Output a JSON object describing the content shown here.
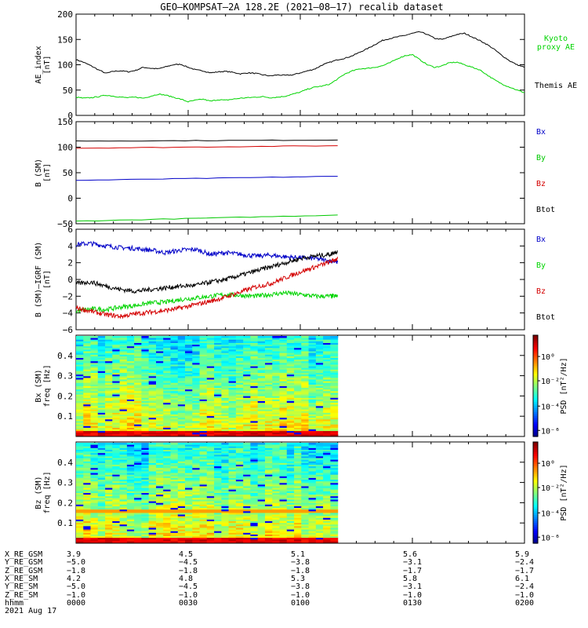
{
  "title": "GEO–KOMPSAT–2A 128.2E (2021–08–17) recalib dataset",
  "chart_data": [
    {
      "type": "line",
      "ylabel": "AE_index [nT]",
      "ylabel_lines": [
        "AE_index",
        "[nT]"
      ],
      "ylim": [
        0,
        200
      ],
      "yticks": [
        "0",
        "50",
        "100",
        "150",
        "200"
      ],
      "grid": false,
      "series": [
        {
          "name": "Themis AE",
          "color": "#000000",
          "x": [
            0,
            2,
            4,
            6,
            8,
            10,
            12,
            14,
            16,
            18,
            20,
            22,
            24,
            26,
            28,
            30,
            32,
            34,
            36,
            38,
            40,
            42,
            44,
            46,
            48,
            50,
            52,
            54,
            56,
            58,
            60,
            62,
            64,
            66,
            68,
            70,
            72,
            74,
            76,
            78,
            80,
            82,
            84,
            86,
            88,
            90,
            92,
            94,
            96,
            98,
            100,
            102,
            104,
            106,
            108,
            110,
            112,
            114,
            116,
            118,
            120
          ],
          "values": [
            110,
            105,
            98,
            90,
            83,
            87,
            88,
            86,
            89,
            95,
            93,
            92,
            96,
            100,
            101,
            95,
            90,
            88,
            84,
            86,
            87,
            85,
            82,
            84,
            83,
            80,
            78,
            80,
            79,
            80,
            84,
            88,
            92,
            100,
            105,
            110,
            113,
            118,
            125,
            132,
            140,
            148,
            152,
            155,
            158,
            162,
            165,
            160,
            152,
            150,
            155,
            160,
            162,
            155,
            148,
            140,
            130,
            118,
            108,
            100,
            95
          ]
        },
        {
          "name": "Kyoto proxy AE",
          "color": "#00d400",
          "x": [
            0,
            2,
            4,
            6,
            8,
            10,
            12,
            14,
            16,
            18,
            20,
            22,
            24,
            26,
            28,
            30,
            32,
            34,
            36,
            38,
            40,
            42,
            44,
            46,
            48,
            50,
            52,
            54,
            56,
            58,
            60,
            62,
            64,
            66,
            68,
            70,
            72,
            74,
            76,
            78,
            80,
            82,
            84,
            86,
            88,
            90,
            92,
            94,
            96,
            98,
            100,
            102,
            104,
            106,
            108,
            110,
            112,
            114,
            116,
            118,
            120
          ],
          "values": [
            36,
            34,
            35,
            37,
            40,
            38,
            36,
            35,
            36,
            34,
            38,
            42,
            40,
            36,
            32,
            27,
            30,
            32,
            28,
            31,
            30,
            32,
            34,
            35,
            36,
            37,
            35,
            36,
            38,
            42,
            46,
            52,
            56,
            58,
            62,
            72,
            82,
            88,
            92,
            93,
            95,
            98,
            104,
            112,
            118,
            120,
            110,
            100,
            95,
            98,
            104,
            105,
            100,
            95,
            90,
            80,
            70,
            62,
            56,
            50,
            45
          ]
        }
      ],
      "legend": [
        {
          "lines": [
            "Kyoto",
            "proxy AE"
          ],
          "color": "#00d400"
        },
        {
          "lines": [
            "Themis AE"
          ],
          "color": "#000000"
        }
      ]
    },
    {
      "type": "line",
      "ylabel": "B (SM) [nT]",
      "ylabel_lines": [
        "B (SM)",
        "[nT]"
      ],
      "ylim": [
        -50,
        150
      ],
      "yticks": [
        "−50",
        "0",
        "50",
        "100",
        "150"
      ],
      "grid": false,
      "series": [
        {
          "name": "Bx",
          "color": "#0000c8",
          "x": [
            0,
            70
          ],
          "values": [
            35,
            43
          ]
        },
        {
          "name": "By",
          "color": "#00c800",
          "x": [
            0,
            70
          ],
          "values": [
            -45,
            -33
          ]
        },
        {
          "name": "Bz",
          "color": "#d40000",
          "x": [
            0,
            70
          ],
          "values": [
            98,
            103
          ]
        },
        {
          "name": "Btot",
          "color": "#000000",
          "x": [
            0,
            70
          ],
          "values": [
            112,
            114
          ]
        }
      ],
      "legend": [
        {
          "lines": [
            "Bx"
          ],
          "color": "#0000c8"
        },
        {
          "lines": [
            "By"
          ],
          "color": "#00c800"
        },
        {
          "lines": [
            "Bz"
          ],
          "color": "#d40000"
        },
        {
          "lines": [
            "Btot"
          ],
          "color": "#000000"
        }
      ]
    },
    {
      "type": "line",
      "ylabel": "B (SM)–IGRF (SM) [nT]",
      "ylabel_lines": [
        "B (SM)–IGRF (SM)",
        "[nT]"
      ],
      "ylim": [
        -6,
        6
      ],
      "yticks": [
        "−6",
        "−4",
        "−2",
        "0",
        "2",
        "4",
        "6"
      ],
      "grid": false,
      "series": [
        {
          "name": "Bx",
          "color": "#0000c8",
          "x": [
            0,
            4,
            8,
            12,
            16,
            20,
            24,
            28,
            32,
            36,
            40,
            44,
            48,
            52,
            56,
            60,
            64,
            68,
            70
          ],
          "values": [
            4.2,
            4.3,
            4.0,
            3.8,
            3.7,
            3.5,
            3.2,
            3.5,
            3.6,
            3.0,
            3.2,
            3.0,
            2.8,
            2.9,
            2.7,
            2.6,
            2.5,
            2.2,
            2.1
          ]
        },
        {
          "name": "By",
          "color": "#00d400",
          "x": [
            0,
            4,
            8,
            12,
            16,
            20,
            24,
            28,
            32,
            36,
            40,
            44,
            48,
            52,
            56,
            60,
            64,
            68,
            70
          ],
          "values": [
            -3.8,
            -3.5,
            -3.6,
            -3.3,
            -3.1,
            -2.8,
            -2.7,
            -2.4,
            -2.2,
            -2.0,
            -1.8,
            -1.9,
            -2.0,
            -1.8,
            -1.6,
            -1.8,
            -2.0,
            -2.0,
            -2.0
          ]
        },
        {
          "name": "Bz",
          "color": "#d40000",
          "x": [
            0,
            4,
            8,
            12,
            16,
            20,
            24,
            28,
            32,
            36,
            40,
            44,
            48,
            52,
            56,
            60,
            64,
            68,
            70
          ],
          "values": [
            -3.4,
            -3.8,
            -4.2,
            -4.4,
            -4.1,
            -3.9,
            -3.7,
            -3.4,
            -3.0,
            -2.6,
            -2.1,
            -1.5,
            -0.9,
            -0.5,
            0.2,
            0.9,
            1.5,
            2.1,
            2.5
          ]
        },
        {
          "name": "Btot",
          "color": "#000000",
          "x": [
            0,
            4,
            8,
            12,
            16,
            20,
            24,
            28,
            32,
            36,
            40,
            44,
            48,
            52,
            56,
            60,
            64,
            68,
            70
          ],
          "values": [
            -0.5,
            -0.3,
            -0.8,
            -1.2,
            -1.4,
            -1.2,
            -1.0,
            -0.8,
            -0.7,
            -0.3,
            0.0,
            0.5,
            1.0,
            1.5,
            2.0,
            2.5,
            2.8,
            3.0,
            3.4
          ]
        }
      ],
      "legend": [
        {
          "lines": [
            "Bx"
          ],
          "color": "#0000c8"
        },
        {
          "lines": [
            "By"
          ],
          "color": "#00d400"
        },
        {
          "lines": [
            "Bz"
          ],
          "color": "#d40000"
        },
        {
          "lines": [
            "Btot"
          ],
          "color": "#000000"
        }
      ]
    },
    {
      "type": "heatmap",
      "ylabel": "Bx (SM) freq [Hz]",
      "ylabel_lines": [
        "Bx (SM)",
        "freq [Hz]"
      ],
      "ylim": [
        0,
        0.5
      ],
      "yticks": [
        "0.1",
        "0.2",
        "0.3",
        "0.4"
      ],
      "x_extent": [
        0,
        70
      ],
      "colorbar": {
        "label": "PSD [nT²/Hz]",
        "ticks": [
          "10⁰",
          "10⁻²",
          "10⁻⁴",
          "10⁻⁶"
        ]
      }
    },
    {
      "type": "heatmap",
      "ylabel": "Bz (SM) freq [Hz]",
      "ylabel_lines": [
        "Bz (SM)",
        "freq [Hz]"
      ],
      "ylim": [
        0,
        0.5
      ],
      "yticks": [
        "0.1",
        "0.2",
        "0.3",
        "0.4"
      ],
      "x_extent": [
        0,
        70
      ],
      "colorbar": {
        "label": "PSD [nT²/Hz]",
        "ticks": [
          "10⁰",
          "10⁻²",
          "10⁻⁴",
          "10⁻⁶"
        ]
      }
    }
  ],
  "ephemeris": {
    "rows": [
      {
        "label": "X_RE_GSM",
        "values": [
          "3.9",
          "4.5",
          "5.1",
          "5.6",
          "5.9"
        ]
      },
      {
        "label": "Y_RE_GSM",
        "values": [
          "−5.0",
          "−4.5",
          "−3.8",
          "−3.1",
          "−2.4"
        ]
      },
      {
        "label": "Z_RE_GSM",
        "values": [
          "−1.8",
          "−1.8",
          "−1.8",
          "−1.7",
          "−1.7"
        ]
      },
      {
        "label": "X_RE_SM",
        "values": [
          "4.2",
          "4.8",
          "5.3",
          "5.8",
          "6.1"
        ]
      },
      {
        "label": "Y_RE_SM",
        "values": [
          "−5.0",
          "−4.5",
          "−3.8",
          "−3.1",
          "−2.4"
        ]
      },
      {
        "label": "Z_RE_SM",
        "values": [
          "−1.0",
          "−1.0",
          "−1.0",
          "−1.0",
          "−1.0"
        ]
      },
      {
        "label": "hhmm",
        "values": [
          "0000",
          "0030",
          "0100",
          "0130",
          "0200"
        ]
      }
    ],
    "date": "2021 Aug 17"
  }
}
